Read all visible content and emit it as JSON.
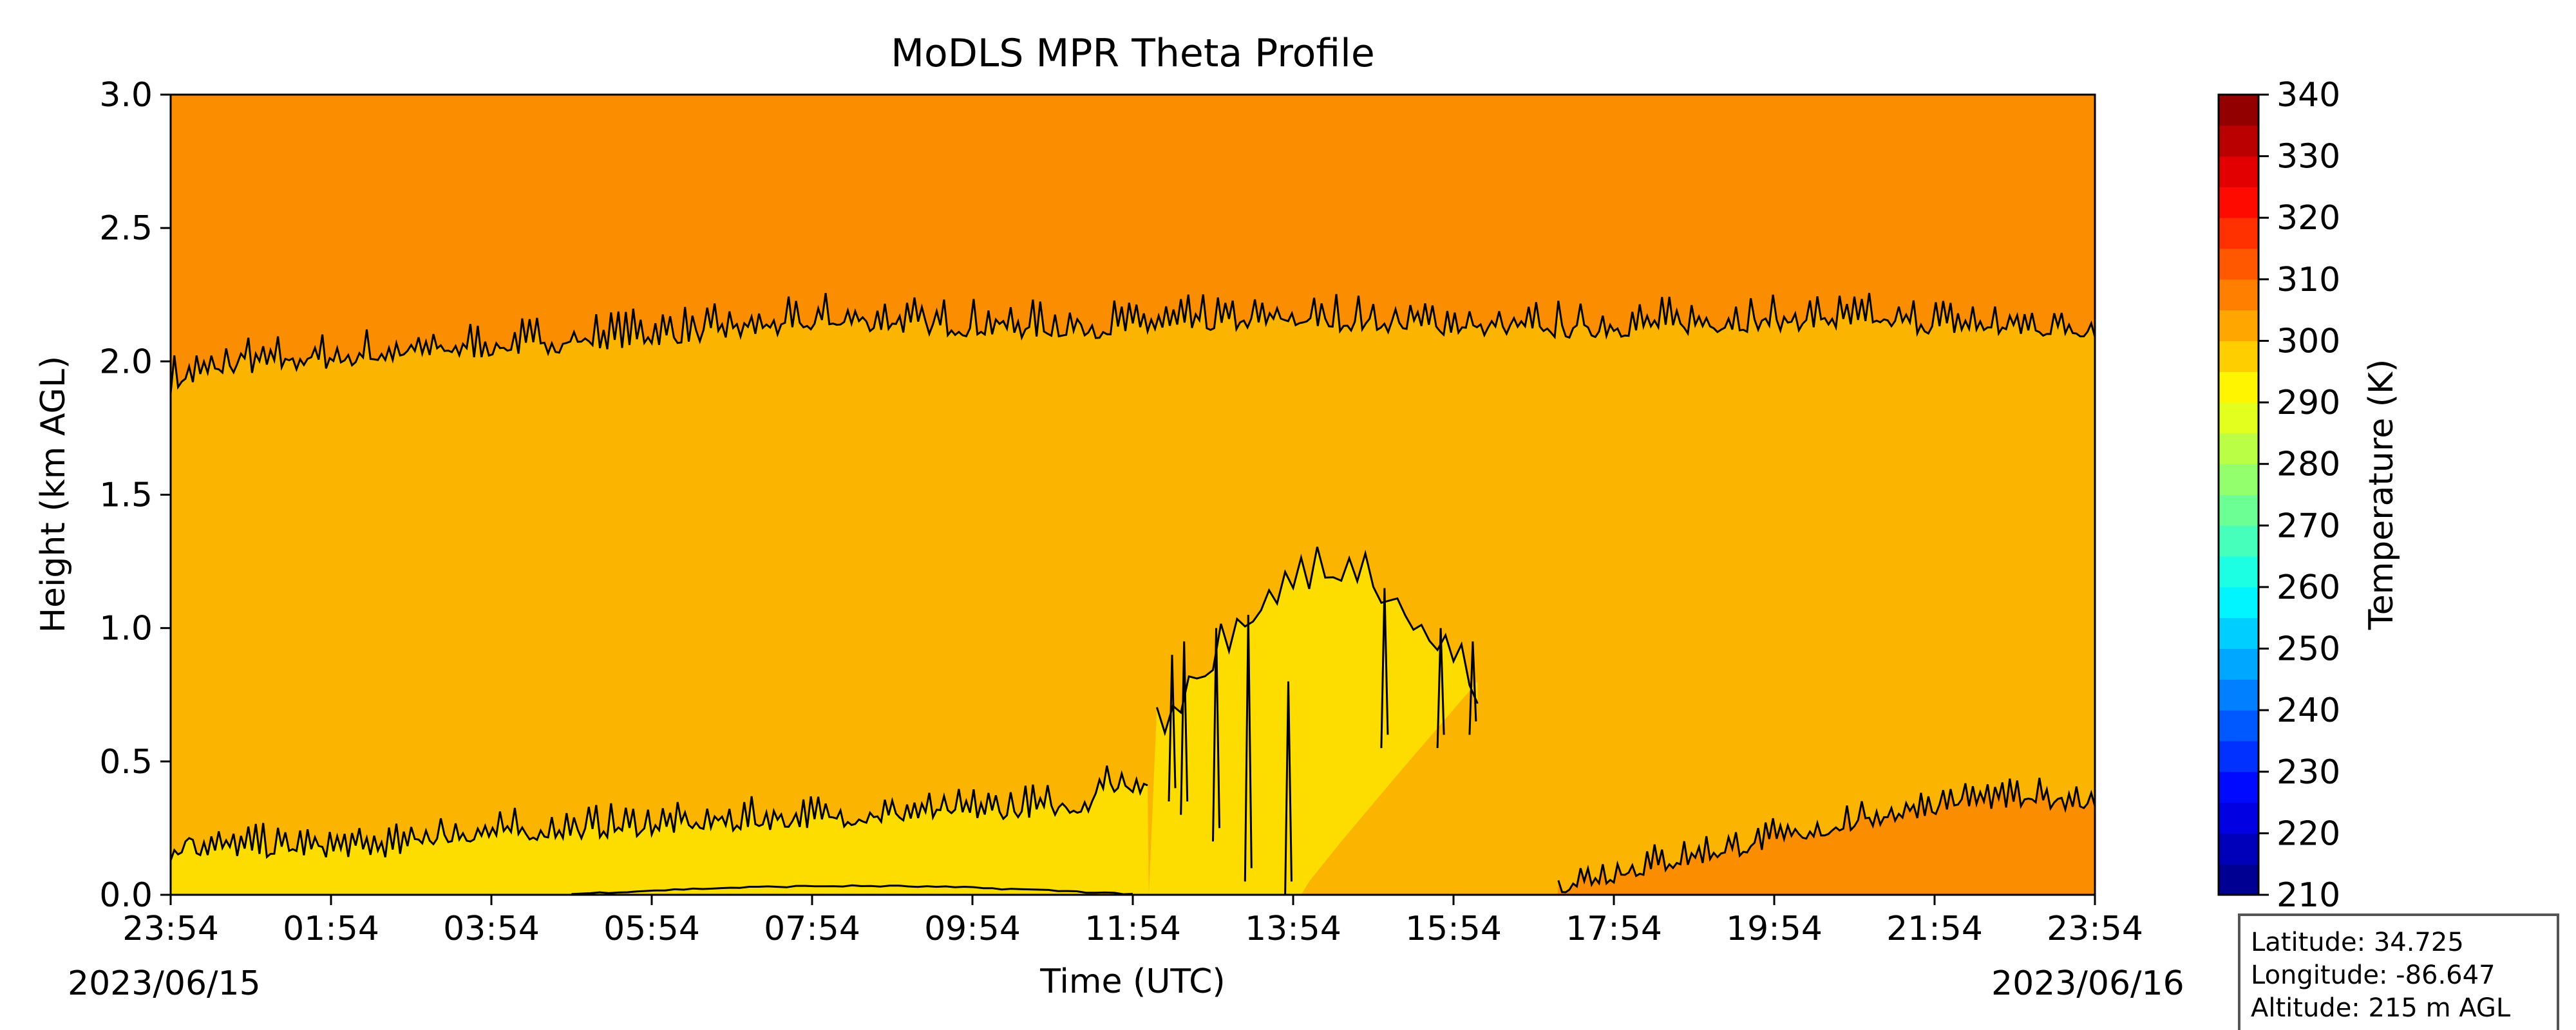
{
  "chart_data": {
    "type": "heatmap",
    "title": "MoDLS MPR Theta Profile",
    "xlabel": "Time (UTC)",
    "ylabel": "Height (km AGL)",
    "xlim": [
      "2023-06-15T23:54",
      "2023-06-16T23:54"
    ],
    "ylim": [
      0,
      3.0
    ],
    "x_ticks": [
      "23:54",
      "01:54",
      "03:54",
      "05:54",
      "07:54",
      "09:54",
      "11:54",
      "13:54",
      "15:54",
      "17:54",
      "19:54",
      "21:54",
      "23:54"
    ],
    "y_ticks": [
      "0.0",
      "0.5",
      "1.0",
      "1.5",
      "2.0",
      "2.5",
      "3.0"
    ],
    "date_start": "2023/06/15",
    "date_end": "2023/06/16",
    "grid": false,
    "colorbar": {
      "label": "Temperature (K)",
      "min": 210,
      "max": 340,
      "step": 5,
      "ticks": [
        "210",
        "220",
        "230",
        "240",
        "250",
        "260",
        "270",
        "280",
        "290",
        "300",
        "310",
        "320",
        "330",
        "340"
      ],
      "colormap": "jet"
    },
    "contour_levels_K": [
      300,
      305
    ],
    "fill_colors": {
      "295-300": "#fddc00",
      "300-305": "#fbb500",
      "305-310": "#fb8d00"
    },
    "regions": [
      {
        "name": "theta 305-310 K (upper layer)",
        "time_hours_range": [
          0,
          24
        ],
        "height_km_range": [
          2.0,
          3.0
        ]
      },
      {
        "name": "theta 300-305 K (mid layer)",
        "time_hours_range": [
          0,
          24
        ],
        "height_km_range": [
          0.2,
          2.0
        ]
      },
      {
        "name": "theta 295-300 K (surface layer)",
        "time_hours_range": [
          0,
          14
        ],
        "height_km_range": [
          0,
          0.3
        ]
      },
      {
        "name": "theta 295-300 K (midday plume)",
        "time_hours_range": [
          12.3,
          16.3
        ],
        "height_km_range": [
          0,
          1.2
        ]
      },
      {
        "name": "theta 305-310 K (evening surface)",
        "time_hours_range": [
          17.3,
          24
        ],
        "height_km_range": [
          0,
          0.4
        ]
      }
    ]
  },
  "info_box": {
    "latitude": "Latitude: 34.725",
    "longitude": "Longitude: -86.647",
    "altitude": "Altitude: 215 m AGL"
  }
}
